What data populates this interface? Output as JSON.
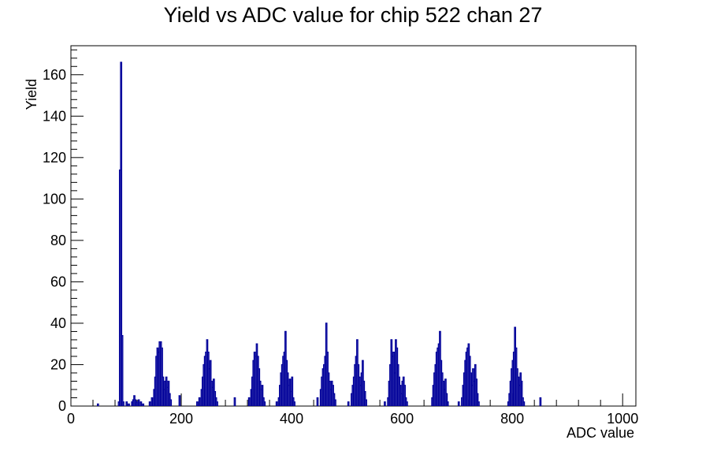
{
  "chart_data": {
    "type": "histogram",
    "title": "Yield vs ADC value for chip 522 chan 27",
    "xlabel": "ADC value",
    "ylabel": "Yield",
    "xlim": [
      0,
      1024
    ],
    "ylim": [
      0,
      174
    ],
    "x_ticks": [
      0,
      200,
      400,
      600,
      800,
      1000
    ],
    "y_ticks": [
      0,
      20,
      40,
      60,
      80,
      100,
      120,
      140,
      160
    ],
    "line_color": "#000099",
    "bin_width": 2,
    "bins": [
      [
        48,
        1
      ],
      [
        86,
        2
      ],
      [
        88,
        114
      ],
      [
        90,
        166
      ],
      [
        92,
        34
      ],
      [
        94,
        2
      ],
      [
        100,
        2
      ],
      [
        104,
        1
      ],
      [
        110,
        2
      ],
      [
        112,
        3
      ],
      [
        114,
        5
      ],
      [
        116,
        3
      ],
      [
        118,
        2
      ],
      [
        122,
        3
      ],
      [
        126,
        2
      ],
      [
        130,
        1
      ],
      [
        142,
        2
      ],
      [
        146,
        4
      ],
      [
        150,
        8
      ],
      [
        152,
        14
      ],
      [
        154,
        24
      ],
      [
        156,
        28
      ],
      [
        158,
        26
      ],
      [
        160,
        31
      ],
      [
        162,
        31
      ],
      [
        164,
        28
      ],
      [
        166,
        14
      ],
      [
        168,
        8
      ],
      [
        170,
        12
      ],
      [
        172,
        14
      ],
      [
        174,
        9
      ],
      [
        176,
        12
      ],
      [
        178,
        6
      ],
      [
        180,
        3
      ],
      [
        196,
        5
      ],
      [
        228,
        2
      ],
      [
        232,
        4
      ],
      [
        236,
        8
      ],
      [
        238,
        14
      ],
      [
        240,
        20
      ],
      [
        242,
        24
      ],
      [
        244,
        26
      ],
      [
        246,
        32
      ],
      [
        248,
        26
      ],
      [
        250,
        18
      ],
      [
        252,
        22
      ],
      [
        254,
        12
      ],
      [
        256,
        9
      ],
      [
        258,
        13
      ],
      [
        260,
        7
      ],
      [
        262,
        4
      ],
      [
        264,
        2
      ],
      [
        296,
        4
      ],
      [
        322,
        4
      ],
      [
        326,
        8
      ],
      [
        328,
        14
      ],
      [
        330,
        22
      ],
      [
        332,
        26
      ],
      [
        334,
        24
      ],
      [
        336,
        30
      ],
      [
        338,
        24
      ],
      [
        340,
        18
      ],
      [
        342,
        12
      ],
      [
        344,
        8
      ],
      [
        346,
        10
      ],
      [
        348,
        4
      ],
      [
        350,
        2
      ],
      [
        372,
        2
      ],
      [
        376,
        4
      ],
      [
        378,
        10
      ],
      [
        380,
        16
      ],
      [
        382,
        20
      ],
      [
        384,
        24
      ],
      [
        386,
        26
      ],
      [
        388,
        36
      ],
      [
        390,
        22
      ],
      [
        392,
        16
      ],
      [
        394,
        10
      ],
      [
        396,
        13
      ],
      [
        398,
        7
      ],
      [
        400,
        14
      ],
      [
        402,
        4
      ],
      [
        404,
        2
      ],
      [
        446,
        4
      ],
      [
        452,
        8
      ],
      [
        454,
        14
      ],
      [
        456,
        18
      ],
      [
        458,
        20
      ],
      [
        460,
        24
      ],
      [
        462,
        40
      ],
      [
        464,
        26
      ],
      [
        466,
        16
      ],
      [
        468,
        12
      ],
      [
        470,
        8
      ],
      [
        472,
        12
      ],
      [
        474,
        10
      ],
      [
        476,
        6
      ],
      [
        478,
        3
      ],
      [
        502,
        2
      ],
      [
        508,
        6
      ],
      [
        510,
        10
      ],
      [
        512,
        14
      ],
      [
        514,
        20
      ],
      [
        516,
        24
      ],
      [
        518,
        32
      ],
      [
        520,
        20
      ],
      [
        522,
        14
      ],
      [
        524,
        10
      ],
      [
        526,
        16
      ],
      [
        528,
        22
      ],
      [
        530,
        12
      ],
      [
        532,
        7
      ],
      [
        534,
        3
      ],
      [
        568,
        2
      ],
      [
        574,
        4
      ],
      [
        576,
        12
      ],
      [
        578,
        20
      ],
      [
        580,
        32
      ],
      [
        582,
        24
      ],
      [
        584,
        26
      ],
      [
        586,
        16
      ],
      [
        588,
        32
      ],
      [
        590,
        28
      ],
      [
        592,
        20
      ],
      [
        594,
        14
      ],
      [
        596,
        10
      ],
      [
        598,
        6
      ],
      [
        600,
        12
      ],
      [
        602,
        14
      ],
      [
        604,
        10
      ],
      [
        606,
        4
      ],
      [
        608,
        2
      ],
      [
        654,
        4
      ],
      [
        656,
        10
      ],
      [
        658,
        16
      ],
      [
        660,
        20
      ],
      [
        662,
        26
      ],
      [
        664,
        28
      ],
      [
        666,
        30
      ],
      [
        668,
        36
      ],
      [
        670,
        22
      ],
      [
        672,
        16
      ],
      [
        674,
        12
      ],
      [
        676,
        8
      ],
      [
        678,
        13
      ],
      [
        680,
        6
      ],
      [
        682,
        2
      ],
      [
        702,
        2
      ],
      [
        708,
        4
      ],
      [
        710,
        10
      ],
      [
        712,
        16
      ],
      [
        714,
        22
      ],
      [
        716,
        26
      ],
      [
        718,
        28
      ],
      [
        720,
        30
      ],
      [
        722,
        24
      ],
      [
        724,
        16
      ],
      [
        726,
        10
      ],
      [
        728,
        18
      ],
      [
        730,
        12
      ],
      [
        732,
        20
      ],
      [
        734,
        13
      ],
      [
        736,
        6
      ],
      [
        738,
        2
      ],
      [
        792,
        2
      ],
      [
        794,
        6
      ],
      [
        796,
        12
      ],
      [
        798,
        18
      ],
      [
        800,
        22
      ],
      [
        802,
        26
      ],
      [
        804,
        38
      ],
      [
        806,
        28
      ],
      [
        808,
        18
      ],
      [
        810,
        14
      ],
      [
        812,
        10
      ],
      [
        814,
        16
      ],
      [
        816,
        12
      ],
      [
        818,
        4
      ],
      [
        820,
        2
      ],
      [
        850,
        4
      ]
    ]
  }
}
